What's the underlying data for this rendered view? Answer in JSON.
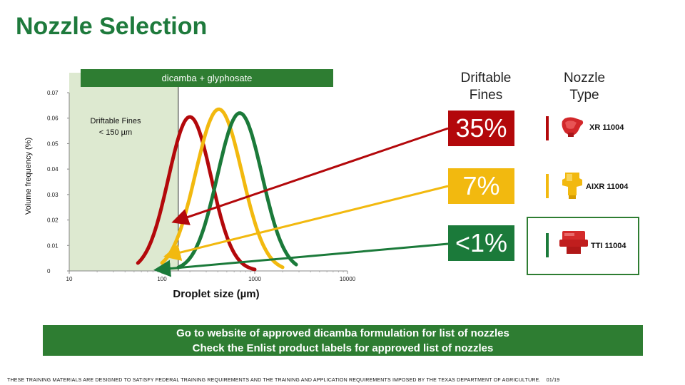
{
  "slide": {
    "title": "Nozzle Selection",
    "legend_text": "dicamba + glyphosate",
    "driftable_header": [
      "Driftable",
      "Fines"
    ],
    "nozzle_header": [
      "Nozzle",
      "Type"
    ],
    "driftable_region_label": [
      "Driftable Fines",
      "< 150 µm"
    ],
    "banner": [
      "Go to website of approved dicamba formulation for list of nozzles",
      "Check the Enlist product labels for approved list of nozzles"
    ],
    "footer": "THESE TRAINING MATERIALS ARE DESIGNED TO SATISFY FEDERAL TRAINING REQUIREMENTS AND THE TRAINING AND APPLICATION REQUIREMENTS IMPOSED BY THE TEXAS DEPARTMENT OF AGRICULTURE.",
    "page_number": "01/19"
  },
  "nozzles": [
    {
      "name": "XR 11004",
      "driftable_fines": "35%",
      "color": "#b3080b"
    },
    {
      "name": "AIXR 11004",
      "driftable_fines": "7%",
      "color": "#f2b90f"
    },
    {
      "name": "TTI 11004",
      "driftable_fines": "<1%",
      "color": "#1b7a3a"
    }
  ],
  "chart_data": {
    "type": "line",
    "xlabel": "Droplet size (µm)",
    "ylabel": "Volume frequency (%)",
    "x_scale": "log",
    "xlim": [
      10,
      10000
    ],
    "ylim": [
      0,
      0.07
    ],
    "x_ticks": [
      "10",
      "100",
      "1000",
      "10000"
    ],
    "y_ticks": [
      "0",
      "0.01",
      "0.02",
      "0.03",
      "0.04",
      "0.05",
      "0.06",
      "0.07"
    ],
    "shaded_region": {
      "x": [
        10,
        150
      ],
      "label": "Driftable Fines < 150 µm"
    },
    "series": [
      {
        "nozzle": "XR 11004",
        "color": "#b3080b",
        "peak_x": 200,
        "peak_y": 0.0605,
        "spread": 0.23,
        "x_range": [
          55,
          1000
        ]
      },
      {
        "nozzle": "AIXR 11004",
        "color": "#f2b90f",
        "peak_x": 410,
        "peak_y": 0.0635,
        "spread": 0.25,
        "x_range": [
          100,
          2000
        ]
      },
      {
        "nozzle": "TTI 11004",
        "color": "#1b7a3a",
        "peak_x": 690,
        "peak_y": 0.062,
        "spread": 0.24,
        "x_range": [
          150,
          2800
        ]
      }
    ]
  }
}
